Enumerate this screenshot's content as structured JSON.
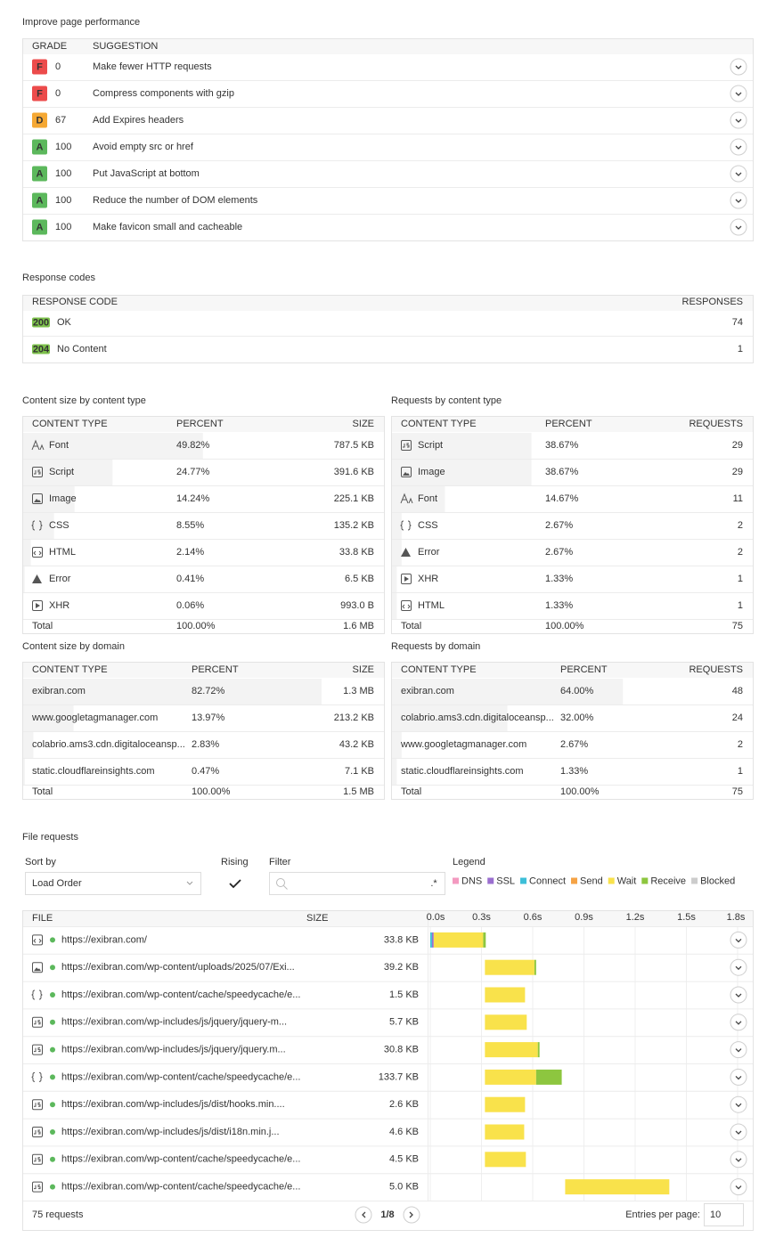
{
  "performance": {
    "title": "Improve page performance",
    "headers": [
      "GRADE",
      "SUGGESTION"
    ],
    "rows": [
      {
        "grade": "F",
        "color": "#ec4b4b",
        "score": 0,
        "suggestion": "Make fewer HTTP requests"
      },
      {
        "grade": "F",
        "color": "#ec4b4b",
        "score": 0,
        "suggestion": "Compress components with gzip"
      },
      {
        "grade": "D",
        "color": "#f5a833",
        "score": 67,
        "suggestion": "Add Expires headers"
      },
      {
        "grade": "A",
        "color": "#5cb85c",
        "score": 100,
        "suggestion": "Avoid empty src or href"
      },
      {
        "grade": "A",
        "color": "#5cb85c",
        "score": 100,
        "suggestion": "Put JavaScript at bottom"
      },
      {
        "grade": "A",
        "color": "#5cb85c",
        "score": 100,
        "suggestion": "Reduce the number of DOM elements"
      },
      {
        "grade": "A",
        "color": "#5cb85c",
        "score": 100,
        "suggestion": "Make favicon small and cacheable"
      }
    ]
  },
  "response_codes": {
    "title": "Response codes",
    "headers": [
      "RESPONSE CODE",
      "RESPONSES"
    ],
    "rows": [
      {
        "code": "200",
        "color": "#7cc04b",
        "status": "OK",
        "responses": 74
      },
      {
        "code": "204",
        "color": "#7cc04b",
        "status": "No Content",
        "responses": 1
      }
    ]
  },
  "content_size_by_type": {
    "title": "Content size by content type",
    "headers": [
      "CONTENT TYPE",
      "PERCENT",
      "SIZE"
    ],
    "rows": [
      {
        "name": "Font",
        "percent": "49.82%",
        "amount": "787.5 KB"
      },
      {
        "name": "Script",
        "percent": "24.77%",
        "amount": "391.6 KB"
      },
      {
        "name": "Image",
        "percent": "14.24%",
        "amount": "225.1 KB"
      },
      {
        "name": "CSS",
        "percent": "8.55%",
        "amount": "135.2 KB"
      },
      {
        "name": "HTML",
        "percent": "2.14%",
        "amount": "33.8 KB"
      },
      {
        "name": "Error",
        "percent": "0.41%",
        "amount": "6.5 KB"
      },
      {
        "name": "XHR",
        "percent": "0.06%",
        "amount": "993.0 B"
      }
    ],
    "total": {
      "name": "Total",
      "percent": "100.00%",
      "amount": "1.6 MB"
    }
  },
  "requests_by_type": {
    "title": "Requests by content type",
    "headers": [
      "CONTENT TYPE",
      "PERCENT",
      "REQUESTS"
    ],
    "rows": [
      {
        "name": "Script",
        "percent": "38.67%",
        "amount": 29
      },
      {
        "name": "Image",
        "percent": "38.67%",
        "amount": 29
      },
      {
        "name": "Font",
        "percent": "14.67%",
        "amount": 11
      },
      {
        "name": "CSS",
        "percent": "2.67%",
        "amount": 2
      },
      {
        "name": "Error",
        "percent": "2.67%",
        "amount": 2
      },
      {
        "name": "XHR",
        "percent": "1.33%",
        "amount": 1
      },
      {
        "name": "HTML",
        "percent": "1.33%",
        "amount": 1
      }
    ],
    "total": {
      "name": "Total",
      "percent": "100.00%",
      "amount": 75
    }
  },
  "content_size_by_domain": {
    "title": "Content size by domain",
    "headers": [
      "CONTENT TYPE",
      "PERCENT",
      "SIZE"
    ],
    "rows": [
      {
        "name": "exibran.com",
        "percent": "82.72%",
        "amount": "1.3 MB"
      },
      {
        "name": "www.googletagmanager.com",
        "percent": "13.97%",
        "amount": "213.2 KB"
      },
      {
        "name": "colabrio.ams3.cdn.digitaloceansp...",
        "percent": "2.83%",
        "amount": "43.2 KB"
      },
      {
        "name": "static.cloudflareinsights.com",
        "percent": "0.47%",
        "amount": "7.1 KB"
      }
    ],
    "total": {
      "name": "Total",
      "percent": "100.00%",
      "amount": "1.5 MB"
    }
  },
  "requests_by_domain": {
    "title": "Requests by domain",
    "headers": [
      "CONTENT TYPE",
      "PERCENT",
      "REQUESTS"
    ],
    "rows": [
      {
        "name": "exibran.com",
        "percent": "64.00%",
        "amount": 48
      },
      {
        "name": "colabrio.ams3.cdn.digitaloceansp...",
        "percent": "32.00%",
        "amount": 24
      },
      {
        "name": "www.googletagmanager.com",
        "percent": "2.67%",
        "amount": 2
      },
      {
        "name": "static.cloudflareinsights.com",
        "percent": "1.33%",
        "amount": 1
      }
    ],
    "total": {
      "name": "Total",
      "percent": "100.00%",
      "amount": 75
    }
  },
  "file_requests": {
    "title": "File requests",
    "sort_label": "Sort by",
    "sort_value": "Load Order",
    "rising_label": "Rising",
    "filter_label": "Filter",
    "filter_regex": ".*",
    "legend_title": "Legend",
    "legend": [
      {
        "name": "DNS",
        "color": "#f39ac0"
      },
      {
        "name": "SSL",
        "color": "#9b6fcf"
      },
      {
        "name": "Connect",
        "color": "#3dbfd8"
      },
      {
        "name": "Send",
        "color": "#f5a346"
      },
      {
        "name": "Wait",
        "color": "#f9e24b"
      },
      {
        "name": "Receive",
        "color": "#8dc63f"
      },
      {
        "name": "Blocked",
        "color": "#cccccc"
      }
    ],
    "headers": [
      "FILE",
      "SIZE"
    ],
    "timeline": {
      "xlim": [
        0,
        1.8
      ],
      "xticks": [
        {
          "value": 0,
          "label": "0.0s"
        },
        {
          "value": 0.3,
          "label": "0.3s"
        },
        {
          "value": 0.6,
          "label": "0.6s"
        },
        {
          "value": 0.9,
          "label": "0.9s"
        },
        {
          "value": 1.2,
          "label": "1.2s"
        },
        {
          "value": 1.5,
          "label": "1.5s"
        },
        {
          "value": 1.8,
          "label": "1.8s"
        }
      ]
    },
    "rows": [
      {
        "url": "https://exibran.com/",
        "size": "33.8 KB",
        "start": 0,
        "timings": [
          {
            "color": "#3dbfd8",
            "value": 0.01
          },
          {
            "color": "#9b6fcf",
            "value": 0.01
          },
          {
            "color": "#f9e24b",
            "value": 0.29
          },
          {
            "color": "#8dc63f",
            "value": 0.015
          }
        ]
      },
      {
        "url": "https://exibran.com/wp-content/uploads/2025/07/Exi...",
        "size": "39.2 KB",
        "start": 0.32,
        "timings": [
          {
            "color": "#f9e24b",
            "value": 0.29
          },
          {
            "color": "#8dc63f",
            "value": 0.01
          }
        ]
      },
      {
        "url": "https://exibran.com/wp-content/cache/speedycache/e...",
        "size": "1.5 KB",
        "start": 0.32,
        "timings": [
          {
            "color": "#f9e24b",
            "value": 0.235
          }
        ]
      },
      {
        "url": "https://exibran.com/wp-includes/js/jquery/jquery-m...",
        "size": "5.7 KB",
        "start": 0.32,
        "timings": [
          {
            "color": "#f9e24b",
            "value": 0.245
          }
        ]
      },
      {
        "url": "https://exibran.com/wp-includes/js/jquery/jquery.m...",
        "size": "30.8 KB",
        "start": 0.32,
        "timings": [
          {
            "color": "#f9e24b",
            "value": 0.31
          },
          {
            "color": "#8dc63f",
            "value": 0.01
          }
        ]
      },
      {
        "url": "https://exibran.com/wp-content/cache/speedycache/e...",
        "size": "133.7 KB",
        "start": 0.32,
        "timings": [
          {
            "color": "#f9e24b",
            "value": 0.3
          },
          {
            "color": "#8dc63f",
            "value": 0.15
          }
        ]
      },
      {
        "url": "https://exibran.com/wp-includes/js/dist/hooks.min....",
        "size": "2.6 KB",
        "start": 0.32,
        "timings": [
          {
            "color": "#f9e24b",
            "value": 0.235
          }
        ]
      },
      {
        "url": "https://exibran.com/wp-includes/js/dist/i18n.min.j...",
        "size": "4.6 KB",
        "start": 0.32,
        "timings": [
          {
            "color": "#f9e24b",
            "value": 0.23
          }
        ]
      },
      {
        "url": "https://exibran.com/wp-content/cache/speedycache/e...",
        "size": "4.5 KB",
        "start": 0.32,
        "timings": [
          {
            "color": "#f9e24b",
            "value": 0.24
          }
        ]
      },
      {
        "url": "https://exibran.com/wp-content/cache/speedycache/e...",
        "size": "5.0 KB",
        "start": 0.79,
        "timings": [
          {
            "color": "#f9e24b",
            "value": 0.61
          }
        ]
      }
    ],
    "summary": "75 requests",
    "page": "1/8",
    "per_page_label": "Entries per page:",
    "per_page": 10
  }
}
